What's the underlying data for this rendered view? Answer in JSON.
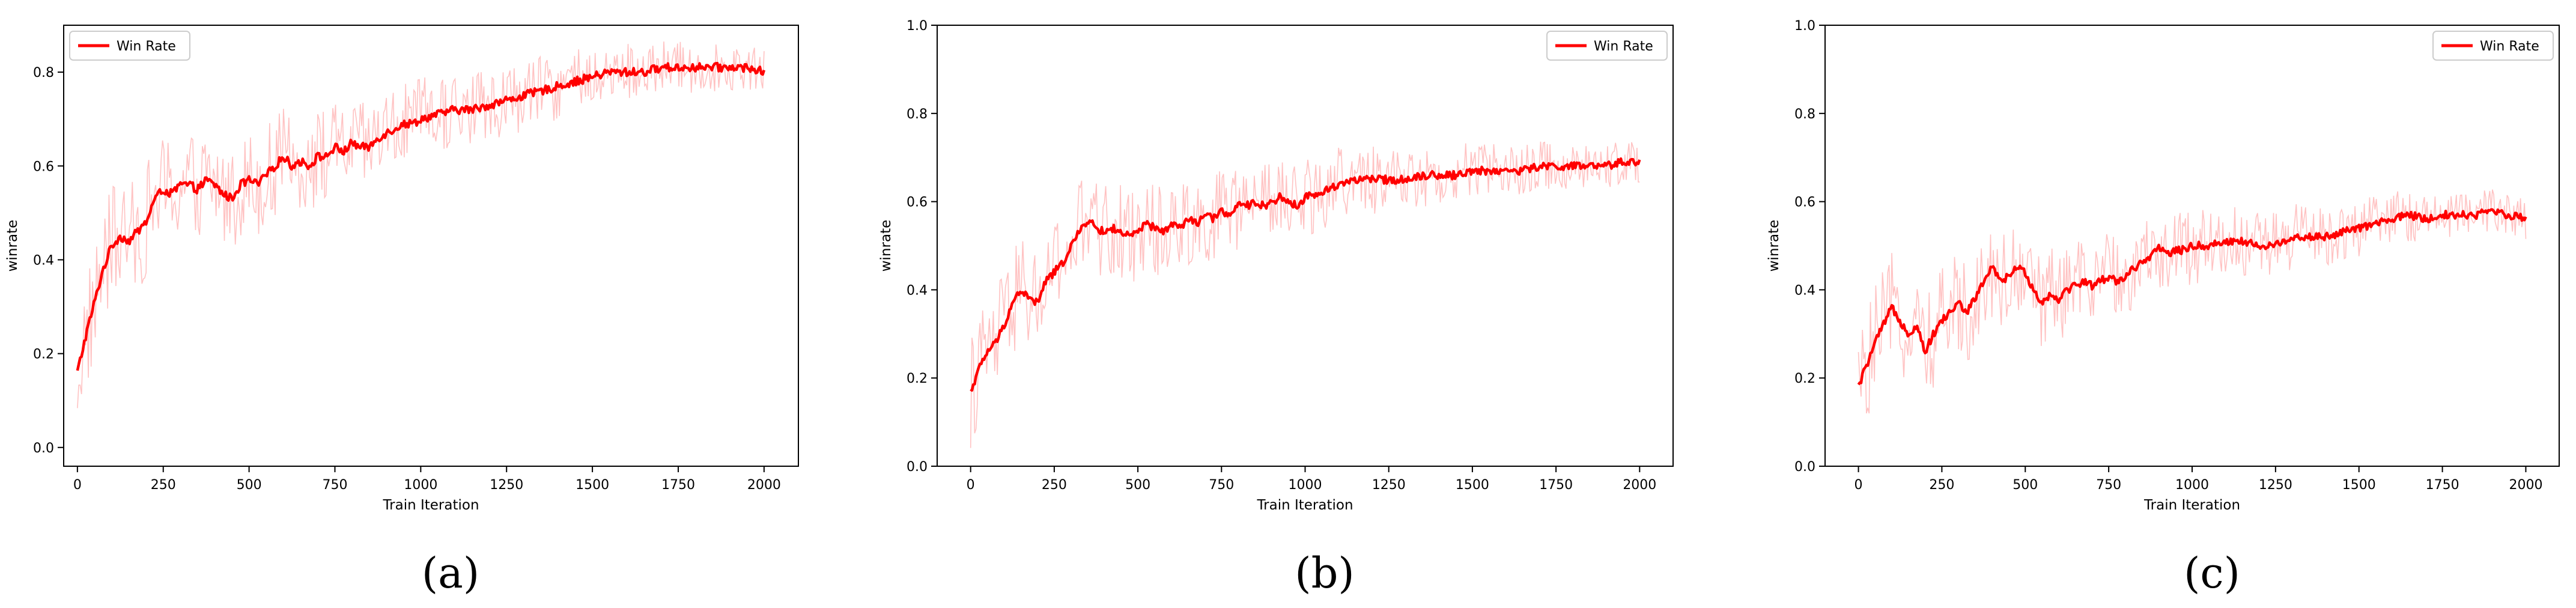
{
  "figure": {
    "captions": [
      "(a)",
      "(b)",
      "(c)"
    ]
  },
  "colors": {
    "mean_line": "#ff0000",
    "raw_line": "#ffb3b3",
    "axis": "#000000",
    "background": "#ffffff"
  },
  "chart_data": [
    {
      "type": "line",
      "xlabel": "Train Iteration",
      "ylabel": "winrate",
      "xlim": [
        -40,
        2100
      ],
      "ylim": [
        -0.04,
        0.9
      ],
      "xticks": [
        0,
        250,
        500,
        750,
        1000,
        1250,
        1500,
        1750,
        2000
      ],
      "yticks": [
        0.0,
        0.2,
        0.4,
        0.6,
        0.8
      ],
      "ytick_labels": [
        "0.0",
        "0.2",
        "0.4",
        "0.6",
        "0.8"
      ],
      "legend": "top-left",
      "grid": false,
      "series": [
        {
          "name": "Win Rate",
          "x": [
            0,
            25,
            50,
            75,
            100,
            125,
            150,
            175,
            200,
            225,
            250,
            275,
            300,
            325,
            350,
            375,
            400,
            425,
            450,
            475,
            500,
            525,
            550,
            575,
            600,
            625,
            650,
            675,
            700,
            725,
            750,
            775,
            800,
            825,
            850,
            875,
            900,
            925,
            950,
            975,
            1000,
            1050,
            1100,
            1150,
            1200,
            1250,
            1300,
            1350,
            1400,
            1450,
            1500,
            1550,
            1600,
            1650,
            1700,
            1750,
            1800,
            1850,
            1900,
            1950,
            2000
          ],
          "y": [
            0.16,
            0.24,
            0.31,
            0.38,
            0.43,
            0.45,
            0.44,
            0.46,
            0.48,
            0.53,
            0.55,
            0.54,
            0.56,
            0.56,
            0.55,
            0.57,
            0.56,
            0.54,
            0.53,
            0.56,
            0.57,
            0.56,
            0.58,
            0.6,
            0.62,
            0.6,
            0.61,
            0.6,
            0.62,
            0.62,
            0.64,
            0.63,
            0.65,
            0.64,
            0.64,
            0.66,
            0.67,
            0.68,
            0.69,
            0.69,
            0.7,
            0.71,
            0.72,
            0.72,
            0.73,
            0.74,
            0.75,
            0.76,
            0.77,
            0.78,
            0.79,
            0.8,
            0.8,
            0.8,
            0.81,
            0.81,
            0.81,
            0.81,
            0.81,
            0.81,
            0.8
          ]
        }
      ]
    },
    {
      "type": "line",
      "xlabel": "Train Iteration",
      "ylabel": "winrate",
      "xlim": [
        -100,
        2100
      ],
      "ylim": [
        0.0,
        1.0
      ],
      "xticks": [
        0,
        250,
        500,
        750,
        1000,
        1250,
        1500,
        1750,
        2000
      ],
      "yticks": [
        0.0,
        0.2,
        0.4,
        0.6,
        0.8,
        1.0
      ],
      "ytick_labels": [
        "0.0",
        "0.2",
        "0.4",
        "0.6",
        "0.8",
        "1.0"
      ],
      "legend": "top-right",
      "grid": false,
      "series": [
        {
          "name": "Win Rate",
          "x": [
            0,
            25,
            50,
            75,
            100,
            125,
            150,
            175,
            200,
            225,
            250,
            275,
            300,
            325,
            350,
            375,
            400,
            425,
            450,
            475,
            500,
            525,
            550,
            575,
            600,
            625,
            650,
            675,
            700,
            725,
            750,
            775,
            800,
            825,
            850,
            875,
            900,
            925,
            950,
            975,
            1000,
            1050,
            1100,
            1150,
            1200,
            1250,
            1300,
            1350,
            1400,
            1450,
            1500,
            1550,
            1600,
            1650,
            1700,
            1750,
            1800,
            1850,
            1900,
            1950,
            2000
          ],
          "y": [
            0.17,
            0.22,
            0.26,
            0.28,
            0.32,
            0.37,
            0.4,
            0.38,
            0.37,
            0.42,
            0.44,
            0.46,
            0.5,
            0.53,
            0.56,
            0.54,
            0.53,
            0.54,
            0.53,
            0.52,
            0.53,
            0.55,
            0.54,
            0.53,
            0.55,
            0.54,
            0.56,
            0.55,
            0.57,
            0.56,
            0.58,
            0.57,
            0.59,
            0.59,
            0.6,
            0.59,
            0.6,
            0.61,
            0.6,
            0.59,
            0.61,
            0.62,
            0.64,
            0.65,
            0.65,
            0.65,
            0.65,
            0.66,
            0.66,
            0.66,
            0.67,
            0.67,
            0.67,
            0.67,
            0.68,
            0.68,
            0.68,
            0.68,
            0.68,
            0.69,
            0.69
          ]
        }
      ]
    },
    {
      "type": "line",
      "xlabel": "Train Iteration",
      "ylabel": "winrate",
      "xlim": [
        -100,
        2100
      ],
      "ylim": [
        0.0,
        1.0
      ],
      "xticks": [
        0,
        250,
        500,
        750,
        1000,
        1250,
        1500,
        1750,
        2000
      ],
      "yticks": [
        0.0,
        0.2,
        0.4,
        0.6,
        0.8,
        1.0
      ],
      "ytick_labels": [
        "0.0",
        "0.2",
        "0.4",
        "0.6",
        "0.8",
        "1.0"
      ],
      "legend": "top-right",
      "grid": false,
      "series": [
        {
          "name": "Win Rate",
          "x": [
            0,
            25,
            50,
            75,
            100,
            125,
            150,
            175,
            200,
            225,
            250,
            275,
            300,
            325,
            350,
            375,
            400,
            425,
            450,
            475,
            500,
            525,
            550,
            575,
            600,
            625,
            650,
            675,
            700,
            725,
            750,
            775,
            800,
            825,
            850,
            875,
            900,
            925,
            950,
            975,
            1000,
            1050,
            1100,
            1150,
            1200,
            1250,
            1300,
            1350,
            1400,
            1450,
            1500,
            1550,
            1600,
            1650,
            1700,
            1750,
            1800,
            1850,
            1900,
            1950,
            2000
          ],
          "y": [
            0.18,
            0.23,
            0.28,
            0.32,
            0.36,
            0.33,
            0.3,
            0.32,
            0.26,
            0.3,
            0.33,
            0.35,
            0.37,
            0.35,
            0.38,
            0.42,
            0.45,
            0.42,
            0.43,
            0.45,
            0.44,
            0.4,
            0.37,
            0.39,
            0.38,
            0.4,
            0.41,
            0.42,
            0.41,
            0.42,
            0.43,
            0.42,
            0.43,
            0.45,
            0.46,
            0.47,
            0.5,
            0.48,
            0.49,
            0.49,
            0.5,
            0.5,
            0.51,
            0.51,
            0.5,
            0.5,
            0.52,
            0.52,
            0.52,
            0.53,
            0.54,
            0.55,
            0.56,
            0.57,
            0.56,
            0.57,
            0.57,
            0.57,
            0.58,
            0.57,
            0.56
          ]
        }
      ]
    }
  ]
}
